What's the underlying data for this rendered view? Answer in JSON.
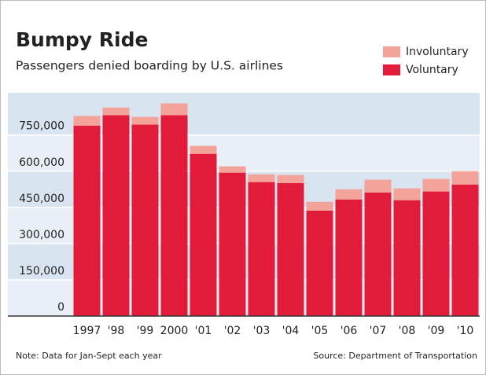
{
  "chart_data": {
    "type": "stacked_bar",
    "title": "Bumpy Ride",
    "subtitle": "Passengers denied boarding by U.S. airlines",
    "categories": [
      "1997",
      "'98",
      "'99",
      "2000",
      "'01",
      "'02",
      "'03",
      "'04",
      "'05",
      "'06",
      "'07",
      "'08",
      "'09",
      "'10"
    ],
    "series": [
      {
        "name": "Voluntary",
        "color": "#e31b3b",
        "values": [
          789000,
          832000,
          793000,
          832000,
          672000,
          594000,
          555000,
          551000,
          437000,
          483000,
          512000,
          480000,
          516000,
          545000
        ]
      },
      {
        "name": "Involuntary",
        "color": "#f4a39a",
        "values": [
          40000,
          32000,
          32000,
          49000,
          33000,
          26000,
          32000,
          33000,
          36000,
          42000,
          53000,
          49000,
          52000,
          55000
        ]
      }
    ],
    "ylim": [
      0,
      925000
    ],
    "yticks": [
      0,
      {
        "value": 150000,
        "label": "150,000"
      },
      {
        "value": 300000,
        "label": "300,000"
      },
      {
        "value": 450000,
        "label": "450,000"
      },
      {
        "value": 600000,
        "label": "600,000"
      },
      {
        "value": 750000,
        "label": "750,000"
      }
    ],
    "grid": true,
    "legend": "top-right",
    "note": "Note: Data for Jan-Sept each year",
    "source": "Source: Department of Transportation"
  }
}
